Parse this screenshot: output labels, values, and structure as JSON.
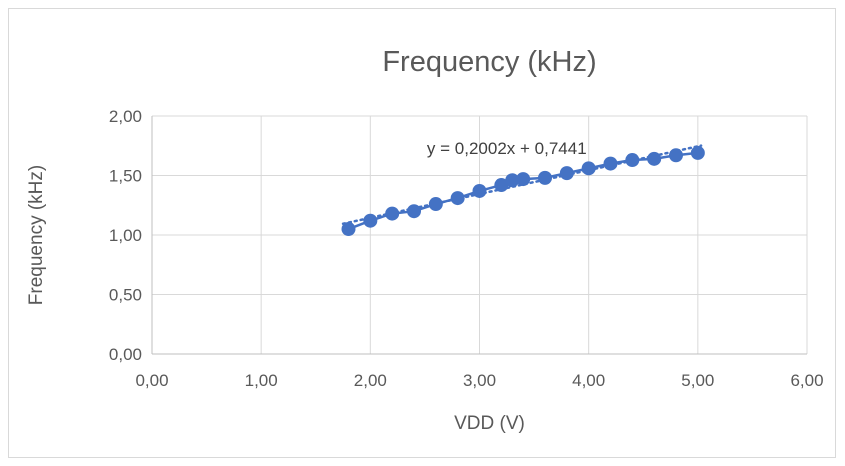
{
  "chart_data": {
    "type": "scatter",
    "title": "Frequency (kHz)",
    "xlabel": "VDD (V)",
    "ylabel": "Frequency (kHz)",
    "xlim": [
      0,
      6
    ],
    "ylim": [
      0,
      2
    ],
    "x_ticks": [
      "0,00",
      "1,00",
      "2,00",
      "3,00",
      "4,00",
      "5,00",
      "6,00"
    ],
    "y_ticks": [
      "0,00",
      "0,50",
      "1,00",
      "1,50",
      "2,00"
    ],
    "grid": true,
    "legend": "none",
    "series": [
      {
        "color": "#4472c4",
        "points": [
          {
            "x": 1.8,
            "y": 1.05
          },
          {
            "x": 2.0,
            "y": 1.12
          },
          {
            "x": 2.2,
            "y": 1.18
          },
          {
            "x": 2.4,
            "y": 1.2
          },
          {
            "x": 2.6,
            "y": 1.26
          },
          {
            "x": 2.8,
            "y": 1.31
          },
          {
            "x": 3.0,
            "y": 1.37
          },
          {
            "x": 3.2,
            "y": 1.42
          },
          {
            "x": 3.3,
            "y": 1.46
          },
          {
            "x": 3.4,
            "y": 1.47
          },
          {
            "x": 3.6,
            "y": 1.48
          },
          {
            "x": 3.8,
            "y": 1.52
          },
          {
            "x": 4.0,
            "y": 1.56
          },
          {
            "x": 4.2,
            "y": 1.6
          },
          {
            "x": 4.4,
            "y": 1.63
          },
          {
            "x": 4.6,
            "y": 1.64
          },
          {
            "x": 4.8,
            "y": 1.67
          },
          {
            "x": 5.0,
            "y": 1.69
          }
        ]
      }
    ],
    "trendline": {
      "type": "linear",
      "slope": 0.2002,
      "intercept": 0.7441,
      "x_range": [
        1.8,
        5.0
      ],
      "style": "dotted",
      "equation_label": "y = 0,2002x + 0,7441"
    }
  }
}
